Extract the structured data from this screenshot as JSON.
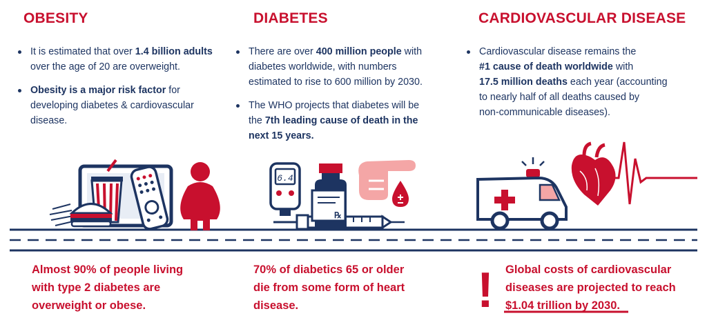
{
  "obesity": {
    "heading": "OBESITY",
    "bullet1": {
      "t1": "It is estimated that over ",
      "b1": "1.4 billion adults",
      "t2": "over the age of 20 are overweight."
    },
    "bullet2": {
      "b1": "Obesity is a major risk factor",
      "t1": " for",
      "t2": "developing diabetes &  cardiovascular",
      "t3": "disease."
    },
    "fact": [
      "Almost 90% of people living",
      "with  type 2 diabetes are",
      "overweight or obese."
    ]
  },
  "diabetes": {
    "heading": "DIABETES",
    "bullet1": {
      "t1": "There are over ",
      "b1": "400 million people",
      "t2": " with",
      "t3": "diabetes worldwide, with numbers",
      "t4": "estimated to rise to 600 million by 2030."
    },
    "bullet2": {
      "t1": "The WHO projects that diabetes will be",
      "t2": "the ",
      "b1": "7th leading cause of death in the",
      "b2": "next 15 years."
    },
    "meter_reading": "6.4",
    "fact": [
      "70% of diabetics 65 or older",
      "die from some form of heart",
      "disease."
    ]
  },
  "cardio": {
    "heading": "CARDIOVASCULAR DISEASE",
    "bullet1": {
      "t1": "Cardiovascular disease remains the",
      "b1": "#1 cause of death worldwide",
      "t2": " with",
      "b2": "17.5 million deaths",
      "t3": " each year (accounting",
      "t4": "to nearly half of all deaths caused by",
      "t5": "non-communicable diseases)."
    },
    "fact": [
      "Global costs of cardiovascular",
      "diseases are projected to reach",
      "$1.04 trillion by 2030."
    ],
    "exclamation": "!"
  },
  "colors": {
    "red": "#c8102e",
    "navy": "#1d3461",
    "pink": "#f4a6a6"
  }
}
